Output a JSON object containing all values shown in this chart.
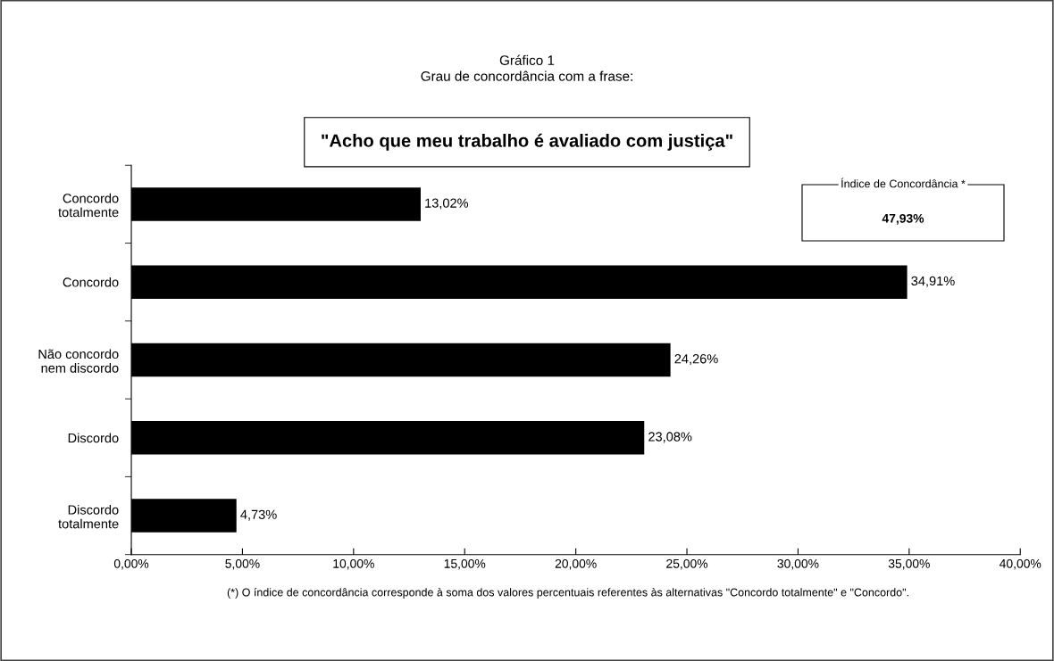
{
  "chart_data": {
    "type": "bar",
    "orientation": "horizontal",
    "title": "Gráfico 1",
    "subtitle": "Grau de concordância com a frase:",
    "categories": [
      "Concordo totalmente",
      "Concordo",
      "Não concordo nem discordo",
      "Discordo",
      "Discordo totalmente"
    ],
    "values": [
      13.02,
      34.91,
      24.26,
      23.08,
      4.73
    ],
    "color": "#000000",
    "value_labels": [
      "13,02%",
      "34,91%",
      "24,26%",
      "23,08%",
      "4,73%"
    ],
    "xlim": [
      0,
      40
    ],
    "xticks": [
      {
        "value": 0,
        "label": "0,00%"
      },
      {
        "value": 5,
        "label": "5,00%"
      },
      {
        "value": 10,
        "label": "10,00%"
      },
      {
        "value": 15,
        "label": "15,00%"
      },
      {
        "value": 20,
        "label": "20,00%"
      },
      {
        "value": 25,
        "label": "25,00%"
      },
      {
        "value": 30,
        "label": "30,00%"
      },
      {
        "value": 35,
        "label": "35,00%"
      },
      {
        "value": 40,
        "label": "40,00%"
      }
    ],
    "grid": false,
    "legend": false,
    "annotations": [
      "\"Acho que meu trabalho é avaliado com justiça\"",
      "Índice de Concordância *",
      "47,93%",
      "(*) O índice de concordância corresponde à soma dos valores percentuais referentes às alternativas \"Concordo totalmente\" e \"Concordo\"."
    ]
  }
}
